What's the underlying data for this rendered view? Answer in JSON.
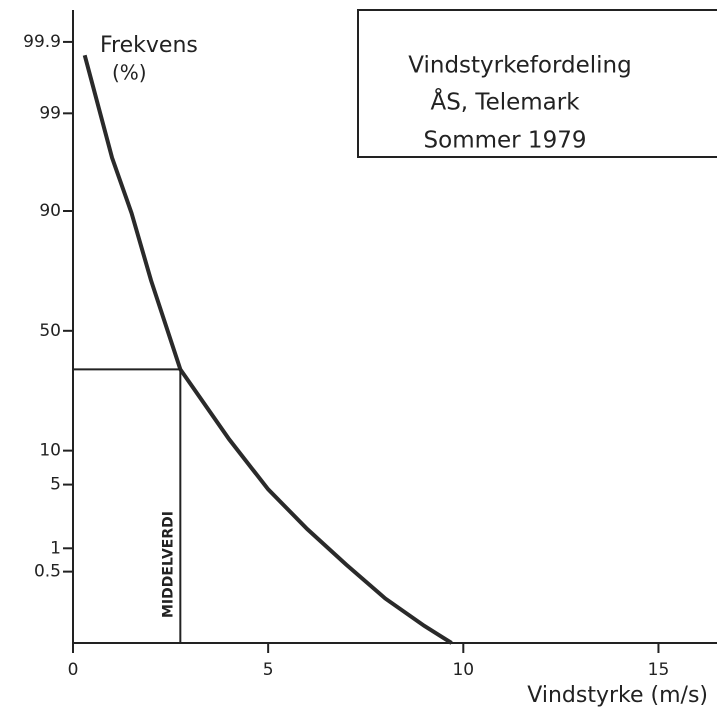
{
  "chart_data": {
    "type": "line",
    "title": [
      "Vindstyrkefordeling",
      "ÅS, Telemark",
      "Sommer 1979"
    ],
    "y_label": [
      "Frekvens",
      "(%)"
    ],
    "x_label": "Vindstyrke (m/s)",
    "yscale": "normal-probability",
    "xlim": [
      0,
      16.5
    ],
    "xticks": [
      0,
      5,
      10,
      15
    ],
    "ylim": [
      0.042,
      99.97
    ],
    "yticks": [
      99.9,
      99,
      90,
      50,
      10,
      5,
      1,
      0.5
    ],
    "series": [
      {
        "name": "Frekvens",
        "color": "#2a2a2a",
        "x": [
          0.3,
          1,
          1.5,
          2,
          2.75,
          4,
          5,
          6,
          7,
          8,
          9,
          9.7
        ],
        "values": [
          99.84,
          96.8,
          89.6,
          70.5,
          34,
          12.3,
          4.5,
          1.7,
          0.62,
          0.21,
          0.08,
          0.042
        ]
      }
    ],
    "mean": {
      "x": 2.75,
      "y": 34,
      "label": "MIDDELVERDI"
    }
  }
}
